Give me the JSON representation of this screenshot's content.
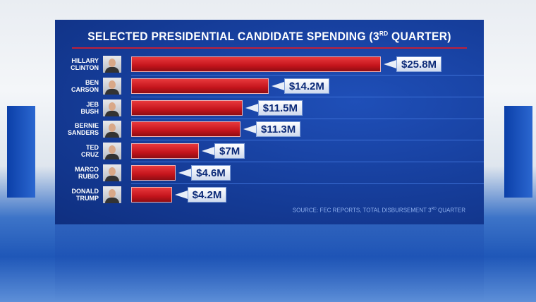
{
  "chart_data": {
    "type": "bar",
    "title": "SELECTED PRESIDENTIAL CANDIDATE SPENDING (3",
    "title_sup": "RD",
    "title_end": " QUARTER)",
    "categories": [
      [
        "HILLARY",
        "CLINTON"
      ],
      [
        "BEN",
        "CARSON"
      ],
      [
        "JEB",
        "BUSH"
      ],
      [
        "BERNIE",
        "SANDERS"
      ],
      [
        "TED",
        "CRUZ"
      ],
      [
        "MARCO",
        "RUBIO"
      ],
      [
        "DONALD",
        "TRUMP"
      ]
    ],
    "values": [
      25.8,
      14.2,
      11.5,
      11.3,
      7,
      4.6,
      4.2
    ],
    "labels": [
      "$25.8M",
      "$14.2M",
      "$11.5M",
      "$11.3M",
      "$7M",
      "$4.6M",
      "$4.2M"
    ],
    "unit": "millions USD",
    "xlim": [
      0,
      25.8
    ],
    "source": "SOURCE: FEC REPORTS, TOTAL DISBURSEMENT 3",
    "source_sup": "RD",
    "source_end": " QUARTER",
    "bar_color": "#c4141c"
  }
}
